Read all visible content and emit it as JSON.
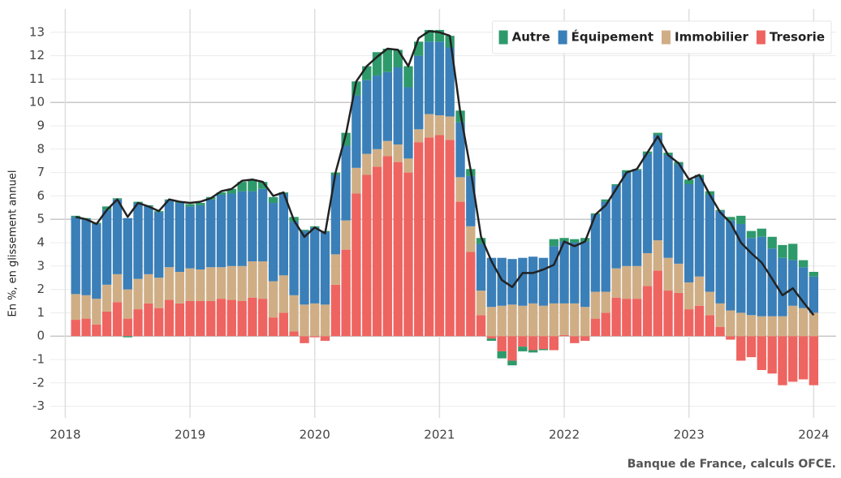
{
  "chart_data": {
    "type": "stacked-bar-line",
    "y_label": "En %, en glissement annuel",
    "source": "Banque de France, calculs OFCE.",
    "x": [
      2018.083,
      2018.167,
      2018.25,
      2018.333,
      2018.417,
      2018.5,
      2018.583,
      2018.667,
      2018.75,
      2018.833,
      2018.917,
      2019.0,
      2019.083,
      2019.167,
      2019.25,
      2019.333,
      2019.417,
      2019.5,
      2019.583,
      2019.667,
      2019.75,
      2019.833,
      2019.917,
      2020.0,
      2020.083,
      2020.167,
      2020.25,
      2020.333,
      2020.417,
      2020.5,
      2020.583,
      2020.667,
      2020.75,
      2020.833,
      2020.917,
      2021.0,
      2021.083,
      2021.167,
      2021.25,
      2021.333,
      2021.417,
      2021.5,
      2021.583,
      2021.667,
      2021.75,
      2021.833,
      2021.917,
      2022.0,
      2022.083,
      2022.167,
      2022.25,
      2022.333,
      2022.417,
      2022.5,
      2022.583,
      2022.667,
      2022.75,
      2022.833,
      2022.917,
      2023.0,
      2023.083,
      2023.167,
      2023.25,
      2023.333,
      2023.417,
      2023.5,
      2023.583,
      2023.667,
      2023.75,
      2023.833,
      2023.917,
      2024.0
    ],
    "series": [
      {
        "name": "Autre",
        "color": "#2e9a6b",
        "values": [
          0.05,
          0.05,
          0.05,
          0.15,
          0.05,
          -0.05,
          0.05,
          0.05,
          0.05,
          0.05,
          0.05,
          0.1,
          0.1,
          0.1,
          0.1,
          0.2,
          0.4,
          0.5,
          0.3,
          0.25,
          0.05,
          0.2,
          0.05,
          0.05,
          0.05,
          0.1,
          0.55,
          0.6,
          0.6,
          1.0,
          1.0,
          0.75,
          0.9,
          0.6,
          0.5,
          0.5,
          0.5,
          0.5,
          0.3,
          0.25,
          -0.1,
          -0.3,
          -0.2,
          -0.2,
          -0.1,
          -0.05,
          0.3,
          0.15,
          0.15,
          0.15,
          0.05,
          0.1,
          0.05,
          0.1,
          0.05,
          0.1,
          0.1,
          0.1,
          0.1,
          0.2,
          0.1,
          0.15,
          0.05,
          0.15,
          0.35,
          0.3,
          0.35,
          0.5,
          0.55,
          0.7,
          0.3,
          0.2
        ]
      },
      {
        "name": "Équipement",
        "color": "#3a7fb8",
        "values": [
          3.3,
          3.25,
          3.2,
          3.2,
          3.2,
          3.05,
          3.25,
          2.9,
          2.8,
          2.85,
          2.95,
          2.65,
          2.75,
          2.9,
          3.1,
          3.1,
          3.2,
          3.0,
          3.1,
          3.35,
          3.5,
          3.15,
          3.15,
          3.25,
          3.1,
          3.4,
          3.2,
          3.1,
          3.15,
          3.15,
          2.95,
          3.3,
          3.05,
          3.15,
          3.1,
          3.15,
          2.95,
          2.35,
          2.15,
          2.0,
          2.1,
          2.05,
          1.95,
          2.05,
          2.0,
          2.05,
          2.45,
          2.65,
          2.6,
          2.8,
          3.3,
          3.85,
          3.55,
          4.0,
          4.1,
          4.25,
          4.5,
          4.4,
          4.25,
          4.2,
          4.25,
          4.15,
          3.95,
          3.85,
          3.8,
          3.3,
          3.4,
          2.9,
          2.5,
          1.95,
          1.75,
          1.55
        ]
      },
      {
        "name": "Immobilier",
        "color": "#cfae86",
        "values": [
          1.1,
          1.0,
          1.1,
          1.15,
          1.2,
          1.25,
          1.3,
          1.25,
          1.3,
          1.4,
          1.35,
          1.4,
          1.35,
          1.45,
          1.35,
          1.45,
          1.5,
          1.55,
          1.6,
          1.55,
          1.6,
          1.55,
          1.35,
          1.4,
          1.35,
          1.3,
          1.25,
          1.1,
          0.9,
          0.75,
          0.65,
          0.75,
          0.6,
          0.55,
          1.0,
          0.85,
          1.0,
          1.05,
          1.1,
          1.05,
          1.25,
          1.3,
          1.35,
          1.3,
          1.4,
          1.3,
          1.4,
          1.35,
          1.4,
          1.25,
          1.15,
          0.9,
          1.25,
          1.4,
          1.4,
          1.4,
          1.3,
          1.4,
          1.25,
          1.15,
          1.25,
          1.0,
          1.0,
          1.1,
          1.0,
          0.9,
          0.85,
          0.85,
          0.85,
          1.3,
          1.2,
          1.0
        ]
      },
      {
        "name": "Tresorie",
        "color": "#ee6460",
        "values": [
          0.7,
          0.75,
          0.5,
          1.05,
          1.45,
          0.75,
          1.15,
          1.4,
          1.2,
          1.55,
          1.4,
          1.5,
          1.5,
          1.5,
          1.6,
          1.55,
          1.5,
          1.65,
          1.6,
          0.8,
          1.0,
          0.2,
          -0.3,
          -0.05,
          -0.2,
          2.2,
          3.7,
          6.1,
          6.9,
          7.25,
          7.7,
          7.45,
          7.0,
          8.3,
          8.5,
          8.6,
          8.4,
          5.75,
          3.6,
          0.9,
          -0.1,
          -0.65,
          -1.05,
          -0.45,
          -0.6,
          -0.55,
          -0.6,
          0.05,
          -0.3,
          -0.2,
          0.75,
          1.0,
          1.65,
          1.6,
          1.6,
          2.15,
          2.8,
          1.95,
          1.85,
          1.15,
          1.3,
          0.9,
          0.4,
          -0.15,
          -1.05,
          -0.9,
          -1.45,
          -1.6,
          -2.1,
          -1.95,
          -1.85,
          -2.1
        ]
      }
    ],
    "line": {
      "color": "#222222",
      "values": [
        5.1,
        5.0,
        4.8,
        5.4,
        5.85,
        5.1,
        5.7,
        5.55,
        5.35,
        5.85,
        5.75,
        5.7,
        5.75,
        5.9,
        6.2,
        6.3,
        6.65,
        6.7,
        6.6,
        6.0,
        6.15,
        4.95,
        4.25,
        4.65,
        4.4,
        7.0,
        8.65,
        10.9,
        11.55,
        11.95,
        12.3,
        12.25,
        11.55,
        12.75,
        13.05,
        13.0,
        12.85,
        9.55,
        7.1,
        4.25,
        3.2,
        2.4,
        2.1,
        2.7,
        2.7,
        2.85,
        3.05,
        4.05,
        3.85,
        4.05,
        5.2,
        5.6,
        6.3,
        7.0,
        7.15,
        7.85,
        8.55,
        7.75,
        7.4,
        6.7,
        6.9,
        6.05,
        5.3,
        4.85,
        4.0,
        3.55,
        3.15,
        2.45,
        1.75,
        2.05,
        1.45,
        0.9
      ]
    },
    "xlim": [
      2017.88,
      2024.18
    ],
    "xticks": [
      2018,
      2019,
      2020,
      2021,
      2022,
      2023,
      2024
    ],
    "ylim": [
      -3.5,
      14
    ],
    "yticks": [
      -3,
      -2,
      -1,
      0,
      1,
      2,
      3,
      4,
      5,
      6,
      7,
      8,
      9,
      10,
      11,
      12,
      13
    ],
    "major_grid_every": 5,
    "grid": true,
    "legend": "top-right"
  }
}
